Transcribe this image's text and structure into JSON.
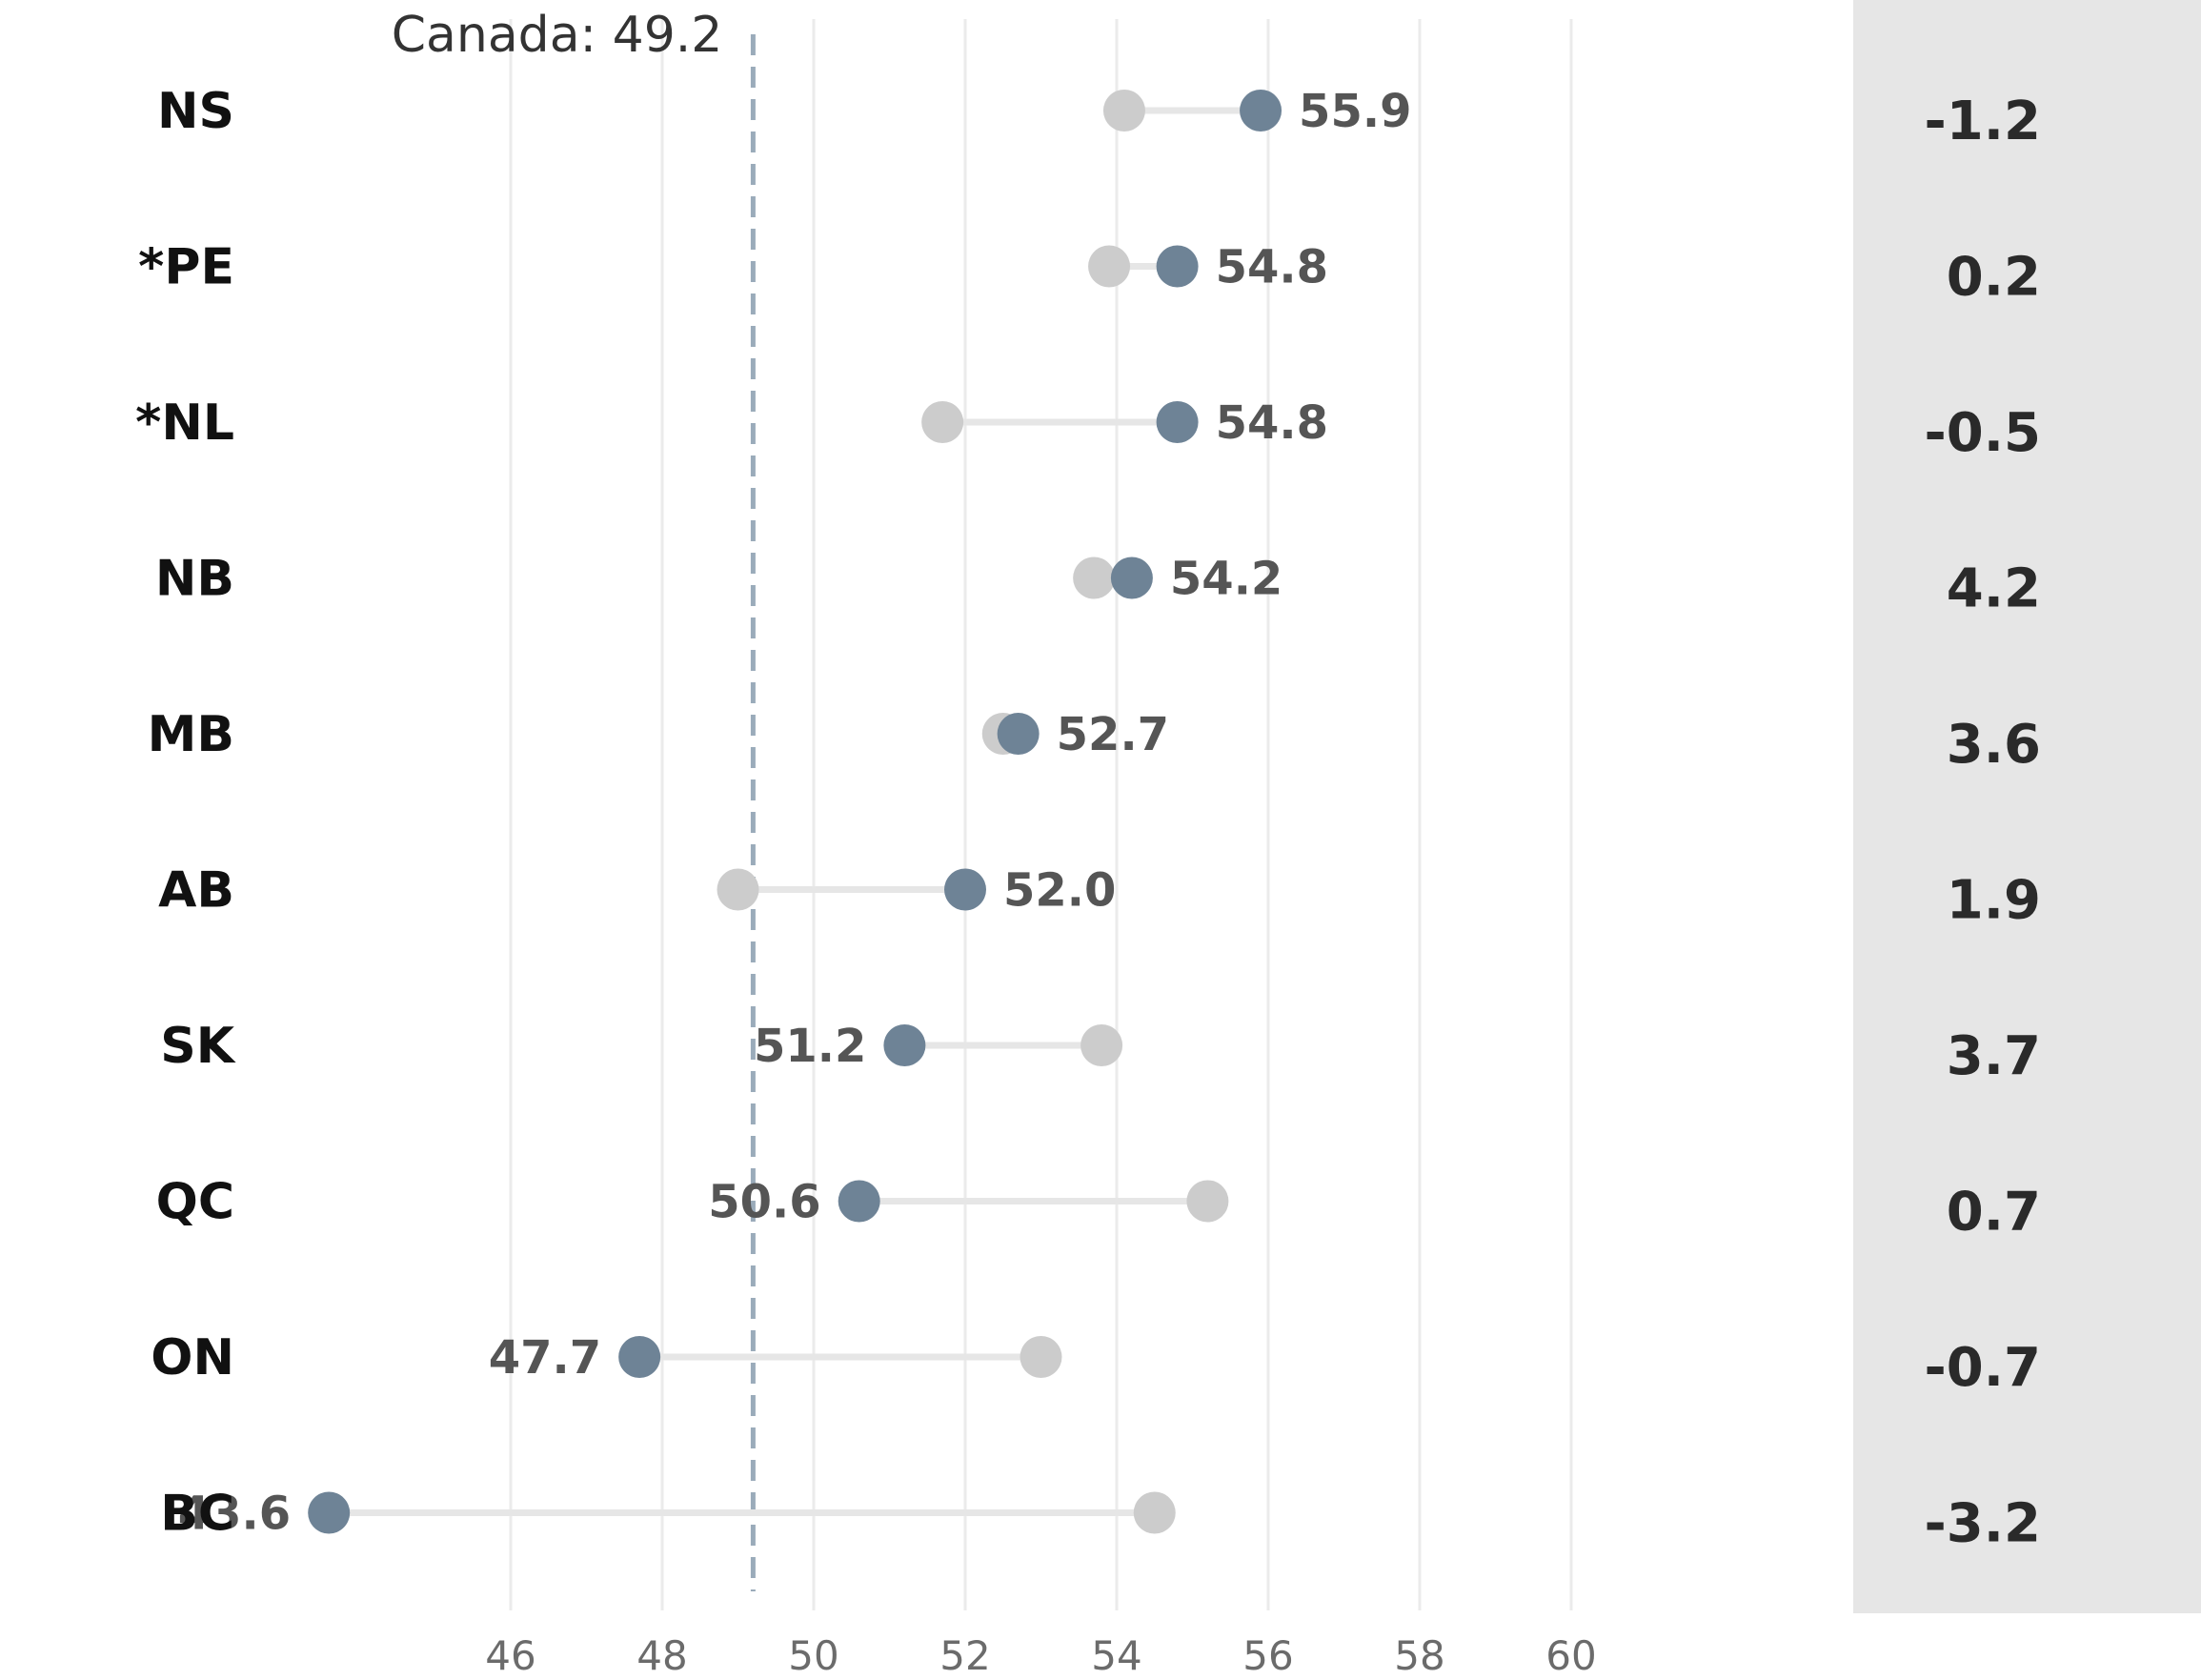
{
  "chart_data": {
    "type": "dumbbell",
    "xlim": [
      44,
      62
    ],
    "x_ticks": [
      46,
      48,
      50,
      52,
      54,
      56,
      58,
      60
    ],
    "grid": "vertical",
    "colors": {
      "current": "#6e8396",
      "previous": "#cccccc",
      "connector": "#e6e6e6",
      "reference": "#9aabba",
      "change_panel": "#e6e6e6"
    },
    "reference": {
      "label": "Canada: 49.2",
      "value": 49.2
    },
    "rows": [
      {
        "label": "NS",
        "value": 55.9,
        "value_text": "55.9",
        "previous": 54.1,
        "change": "-1.2"
      },
      {
        "label": "*PE",
        "value": 54.8,
        "value_text": "54.8",
        "previous": 53.9,
        "change": "0.2"
      },
      {
        "label": "*NL",
        "value": 54.8,
        "value_text": "54.8",
        "previous": 51.7,
        "change": "-0.5"
      },
      {
        "label": "NB",
        "value": 54.2,
        "value_text": "54.2",
        "previous": 53.7,
        "change": "4.2"
      },
      {
        "label": "MB",
        "value": 52.7,
        "value_text": "52.7",
        "previous": 52.5,
        "change": "3.6"
      },
      {
        "label": "AB",
        "value": 52.0,
        "value_text": "52.0",
        "previous": 49.0,
        "change": "1.9"
      },
      {
        "label": "SK",
        "value": 51.2,
        "value_text": "51.2",
        "previous": 53.8,
        "change": "3.7"
      },
      {
        "label": "QC",
        "value": 50.6,
        "value_text": "50.6",
        "previous": 55.2,
        "change": "0.7"
      },
      {
        "label": "ON",
        "value": 47.7,
        "value_text": "47.7",
        "previous": 53.0,
        "change": "-0.7"
      },
      {
        "label": "BC",
        "value": 43.6,
        "value_text": "43.6",
        "previous": 54.5,
        "change": "-3.2"
      }
    ]
  }
}
